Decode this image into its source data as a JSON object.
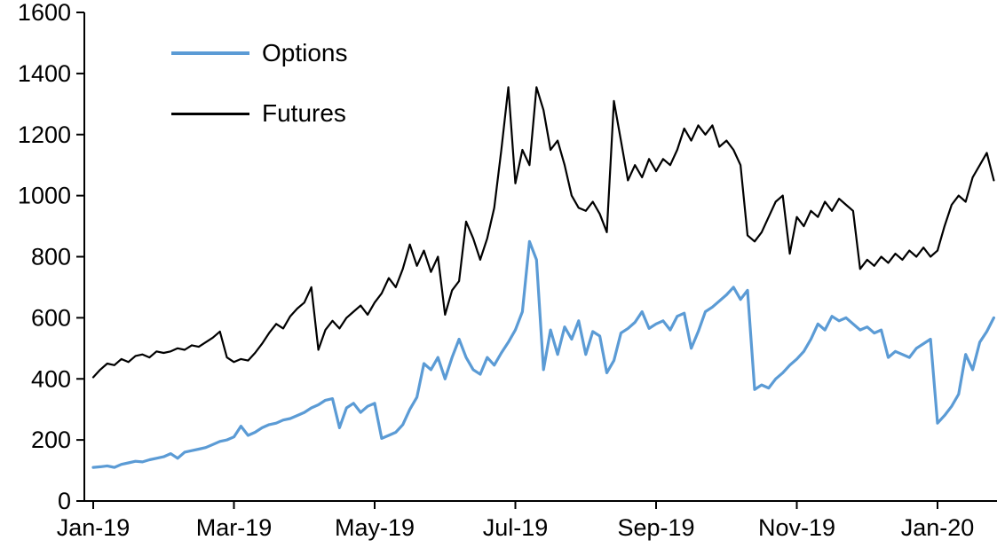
{
  "chart_data": {
    "type": "line",
    "legend": {
      "position": "top-left",
      "entries": [
        "Options",
        "Futures"
      ]
    },
    "x_axis": {
      "tick_labels": [
        "Jan-19",
        "Mar-19",
        "May-19",
        "Jul-19",
        "Sep-19",
        "Nov-19",
        "Jan-20"
      ],
      "tick_months": [
        0,
        2,
        4,
        6,
        8,
        10,
        12
      ],
      "range_months": [
        0,
        12.8
      ]
    },
    "y_axis": {
      "ticks": [
        0,
        200,
        400,
        600,
        800,
        1000,
        1200,
        1400,
        1600
      ],
      "range": [
        0,
        1600
      ]
    },
    "grid": "off",
    "x_start": 0,
    "x_step": 0.1,
    "series": [
      {
        "name": "Options",
        "color": "#5B9BD5",
        "stroke_width": 3.2,
        "values": [
          110,
          112,
          115,
          110,
          120,
          125,
          130,
          128,
          135,
          140,
          145,
          155,
          140,
          160,
          165,
          170,
          175,
          185,
          195,
          200,
          210,
          245,
          215,
          225,
          240,
          250,
          255,
          265,
          270,
          280,
          290,
          305,
          315,
          330,
          335,
          240,
          305,
          320,
          290,
          310,
          320,
          205,
          215,
          225,
          250,
          300,
          340,
          450,
          430,
          470,
          400,
          470,
          530,
          470,
          430,
          415,
          470,
          445,
          485,
          520,
          560,
          620,
          850,
          790,
          430,
          560,
          480,
          570,
          530,
          590,
          480,
          555,
          540,
          420,
          460,
          550,
          565,
          585,
          620,
          565,
          580,
          590,
          560,
          605,
          615,
          500,
          555,
          620,
          635,
          655,
          675,
          700,
          660,
          690,
          365,
          380,
          370,
          400,
          420,
          445,
          465,
          490,
          530,
          580,
          560,
          605,
          590,
          600,
          580,
          560,
          570,
          550,
          560,
          470,
          490,
          480,
          470,
          500,
          515,
          530,
          255,
          280,
          310,
          350,
          480,
          430,
          520,
          555,
          600
        ]
      },
      {
        "name": "Futures",
        "color": "#000000",
        "stroke_width": 2.2,
        "values": [
          405,
          430,
          450,
          445,
          465,
          455,
          475,
          480,
          470,
          490,
          485,
          490,
          500,
          495,
          510,
          505,
          520,
          535,
          555,
          470,
          455,
          465,
          460,
          485,
          515,
          550,
          580,
          565,
          605,
          630,
          650,
          700,
          495,
          560,
          590,
          565,
          600,
          620,
          640,
          610,
          650,
          680,
          730,
          700,
          760,
          840,
          770,
          820,
          750,
          800,
          610,
          690,
          720,
          915,
          860,
          790,
          860,
          960,
          1150,
          1355,
          1040,
          1150,
          1100,
          1355,
          1280,
          1150,
          1180,
          1100,
          1000,
          960,
          950,
          980,
          940,
          880,
          1310,
          1180,
          1050,
          1100,
          1060,
          1120,
          1080,
          1120,
          1100,
          1150,
          1220,
          1180,
          1230,
          1200,
          1230,
          1160,
          1180,
          1150,
          1100,
          870,
          850,
          880,
          930,
          980,
          1000,
          810,
          930,
          900,
          950,
          930,
          980,
          950,
          990,
          970,
          950,
          760,
          790,
          770,
          800,
          780,
          810,
          790,
          820,
          800,
          830,
          800,
          820,
          900,
          970,
          1000,
          980,
          1060,
          1100,
          1140,
          1050
        ]
      }
    ]
  },
  "colors": {
    "background": "#FFFFFF",
    "axis": "#000000",
    "options_line": "#5B9BD5",
    "futures_line": "#000000"
  }
}
